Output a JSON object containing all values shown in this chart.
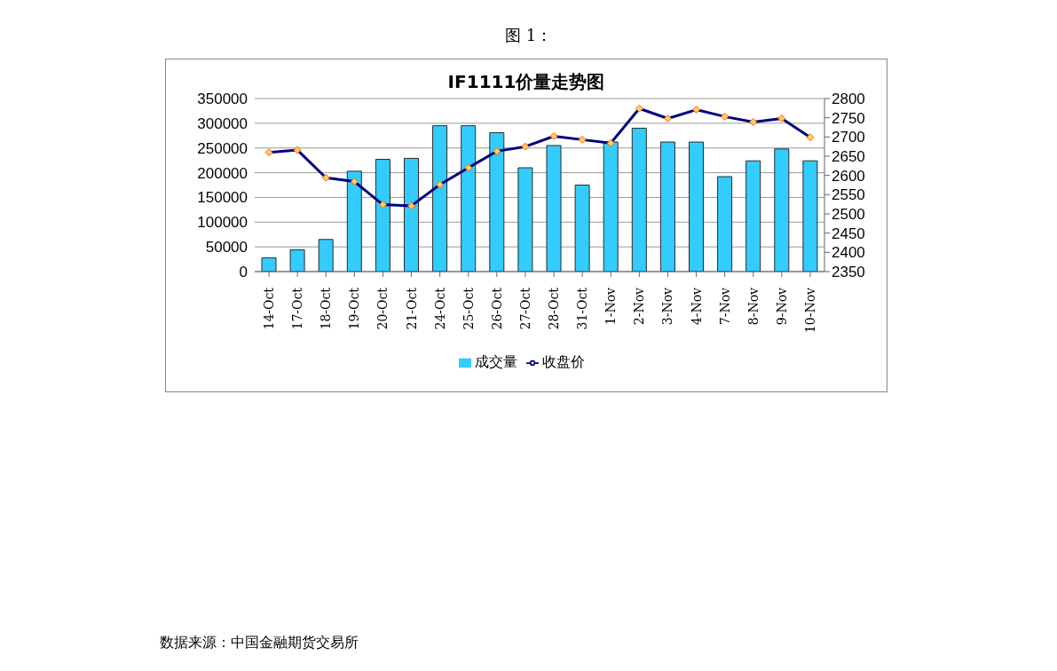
{
  "chart_data": {
    "type": "bar",
    "title": "IF1111价量走势图",
    "annotations": [
      "图 1：",
      "数据来源：中国金融期货交易所"
    ],
    "categories": [
      "14-Oct",
      "17-Oct",
      "18-Oct",
      "19-Oct",
      "20-Oct",
      "21-Oct",
      "24-Oct",
      "25-Oct",
      "26-Oct",
      "27-Oct",
      "28-Oct",
      "31-Oct",
      "1-Nov",
      "2-Nov",
      "3-Nov",
      "4-Nov",
      "7-Nov",
      "8-Nov",
      "9-Nov",
      "10-Nov"
    ],
    "series": [
      {
        "name": "成交量",
        "color": "#33ccff",
        "values": [
          28000,
          44000,
          65000,
          203000,
          227000,
          229000,
          295000,
          295000,
          281000,
          210000,
          255000,
          175000,
          262000,
          290000,
          262000,
          262000,
          192000,
          224000,
          248000,
          224000
        ]
      },
      {
        "name": "收盘价",
        "type": "line",
        "axis": "y2",
        "color": "#000080",
        "values": [
          2660,
          2666,
          2594,
          2584,
          2524,
          2521,
          2576,
          2620,
          2663,
          2675,
          2702,
          2693,
          2684,
          2774,
          2748,
          2771,
          2753,
          2739,
          2748,
          2699
        ]
      }
    ],
    "ylim": [
      0,
      350000
    ],
    "yticks": [
      0,
      50000,
      100000,
      150000,
      200000,
      250000,
      300000,
      350000
    ],
    "y2lim": [
      2350,
      2800
    ],
    "y2ticks": [
      2350,
      2400,
      2450,
      2500,
      2550,
      2600,
      2650,
      2700,
      2750,
      2800
    ],
    "grid": "y",
    "legend": "bottom",
    "marker": "diamond",
    "line_style": "solid"
  }
}
